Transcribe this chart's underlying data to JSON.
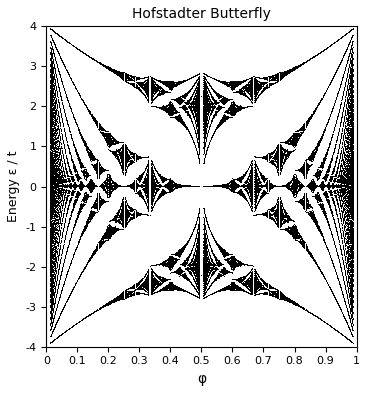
{
  "title": "Hofstadter Butterfly",
  "xlabel": "φ",
  "ylabel": "Energy ε / t",
  "xlim": [
    0,
    1
  ],
  "ylim": [
    -4,
    4
  ],
  "xticks": [
    0,
    0.1,
    0.2,
    0.3,
    0.4,
    0.5,
    0.6,
    0.7,
    0.8,
    0.9,
    1
  ],
  "xtick_labels": [
    "0",
    "0.1",
    "0.2",
    "0.3",
    "0.4",
    "0.5",
    "0.6",
    "0.7",
    "0.8",
    "0.9",
    "1"
  ],
  "yticks": [
    -4,
    -3,
    -2,
    -1,
    0,
    1,
    2,
    3,
    4
  ],
  "ytick_labels": [
    "-4",
    "-3",
    "-2",
    "-1",
    "0",
    "1",
    "2",
    "3",
    "4"
  ],
  "marker_color": "black",
  "q_max": 80,
  "figsize": [
    3.67,
    3.93
  ],
  "dpi": 100,
  "title_fontsize": 10
}
